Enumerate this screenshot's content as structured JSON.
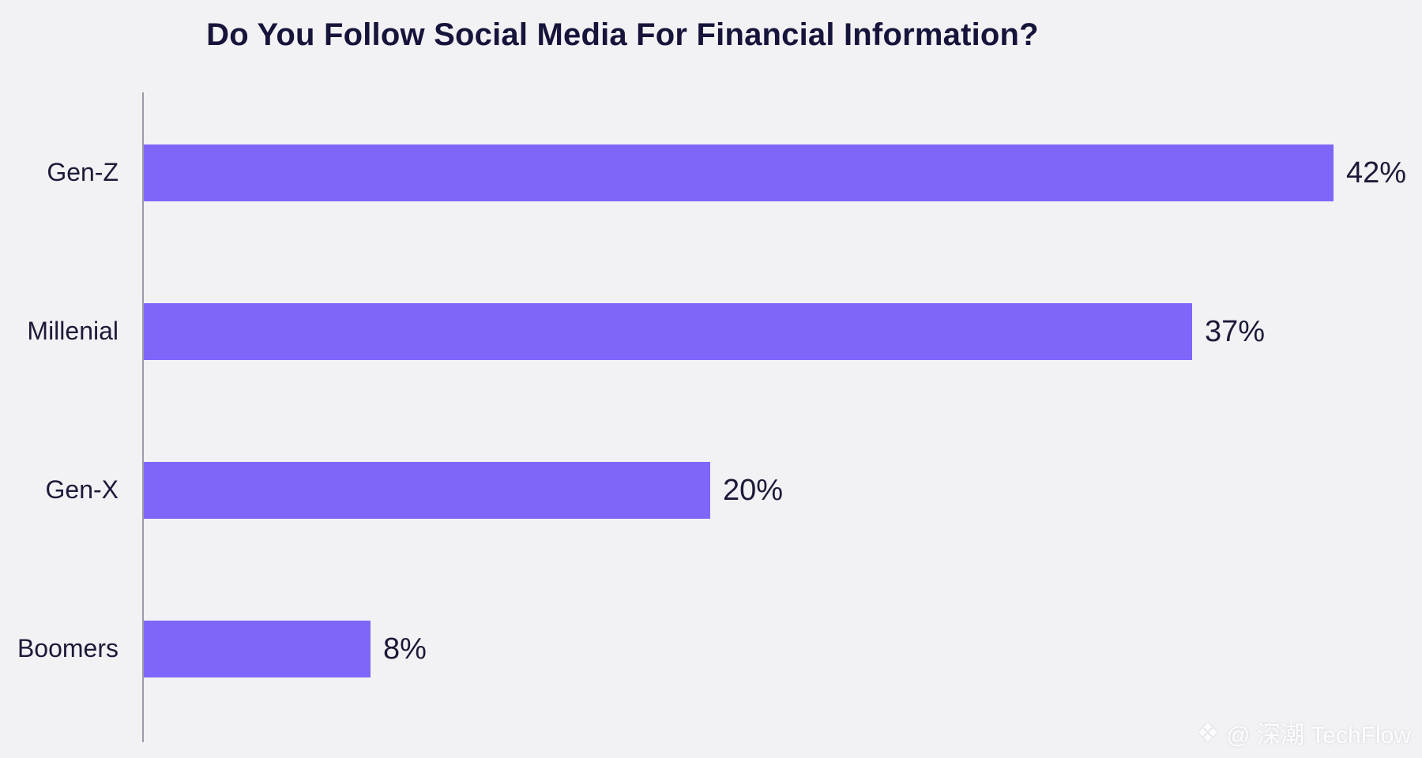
{
  "page": {
    "background_color": "#F2F2F5",
    "text_color": "#1C1A38",
    "accent_color": "#7F66F9",
    "axis_color": "#9B9BA6"
  },
  "chart_data": {
    "type": "bar",
    "orientation": "horizontal",
    "title": "Do You Follow Social Media For Financial Information?",
    "categories": [
      "Gen-Z",
      "Millenial",
      "Gen-X",
      "Boomers"
    ],
    "values": [
      42,
      37,
      20,
      8
    ],
    "value_labels": [
      "42%",
      "37%",
      "20%",
      "8%"
    ],
    "unit": "percent",
    "xlim": [
      0,
      45
    ],
    "grid": false,
    "legend": false,
    "bar_color": "#7F66F9",
    "label_color": "#1C1A38"
  },
  "watermark": {
    "icon": "diamond-logo",
    "icon_glyph": "❖",
    "text": "@ 深潮 TechFlow"
  }
}
